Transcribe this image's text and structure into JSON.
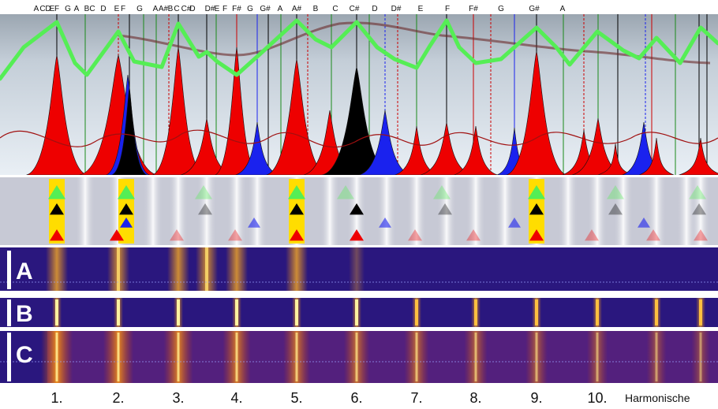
{
  "top_note_labels": [
    "A",
    "C",
    "D",
    "E",
    "F",
    "G",
    "A",
    "B",
    "C",
    "D",
    "E",
    "F",
    "G",
    "A",
    "A#",
    "B",
    "C",
    "C#",
    "D",
    "D#",
    "E",
    "F",
    "F#",
    "G",
    "G#",
    "A",
    "A#",
    "B",
    "C",
    "C#",
    "D",
    "D#",
    "E",
    "F",
    "F#",
    "G",
    "G#",
    "A"
  ],
  "harmonics": {
    "labels": [
      "1.",
      "2.",
      "3.",
      "4.",
      "5.",
      "6.",
      "7.",
      "8.",
      "9.",
      "10."
    ],
    "caption": "Harmonische"
  },
  "strips": [
    {
      "label": "A"
    },
    {
      "label": "B"
    },
    {
      "label": "C"
    }
  ],
  "colors": {
    "red": "#ee0000",
    "blue": "#1a22ee",
    "black": "#000000",
    "green_curve": "#55ee55",
    "spectrogram_bg": "#2a177e",
    "highlight": "#ffdd00"
  }
}
